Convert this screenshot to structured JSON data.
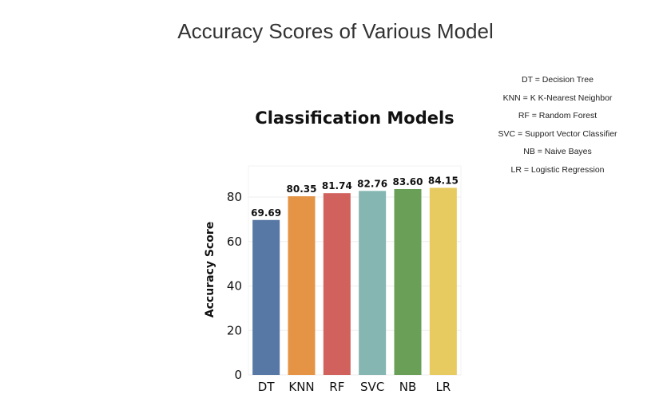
{
  "page_title": "Accuracy Scores of Various Model",
  "legend_notes": [
    "DT = Decision Tree",
    "KNN = K K-Nearest Neighbor",
    "RF = Random Forest",
    "SVC = Support Vector Classifier",
    "NB = Naive Bayes",
    "LR = Logistic Regression"
  ],
  "chart_data": {
    "type": "bar",
    "title": "Classification Models",
    "xlabel": "",
    "ylabel": "Accuracy Score",
    "categories": [
      "DT",
      "KNN",
      "RF",
      "SVC",
      "NB",
      "LR"
    ],
    "values": [
      69.69,
      80.35,
      81.74,
      82.76,
      83.6,
      84.15
    ],
    "value_labels": [
      "69.69",
      "80.35",
      "81.74",
      "82.76",
      "83.60",
      "84.15"
    ],
    "colors": [
      "#5778a4",
      "#e49444",
      "#d1615d",
      "#85b6b2",
      "#6a9f58",
      "#e7ca60"
    ],
    "ylim": [
      0,
      94
    ],
    "yticks": [
      0,
      20,
      40,
      60,
      80
    ],
    "grid": true,
    "legend": "none"
  }
}
